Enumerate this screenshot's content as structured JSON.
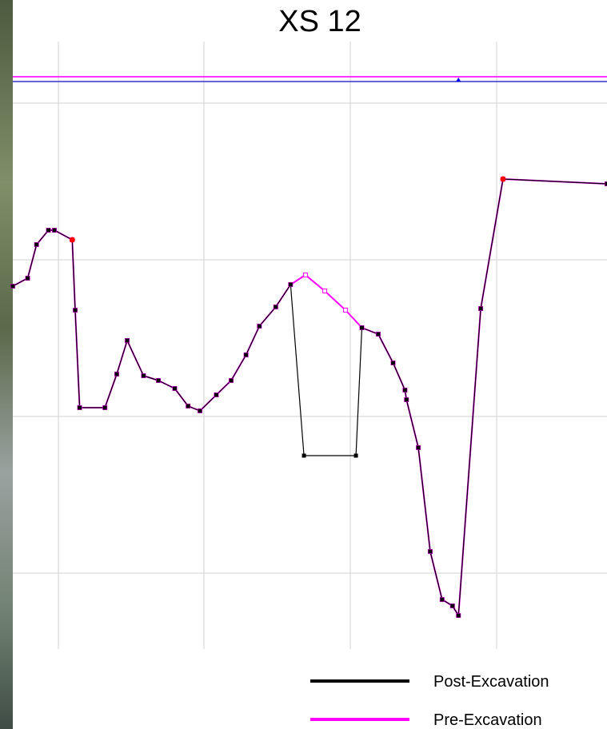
{
  "chart_data": {
    "type": "line",
    "title": "XS 12",
    "xlabel": "",
    "ylabel": "",
    "xlim": [
      0,
      40
    ],
    "ylim": [
      0,
      38
    ],
    "grid": true,
    "legend_position": "bottom-right",
    "water_surface": {
      "pink_level": 35.8,
      "blue_level": 35.5,
      "marker_x": 30
    },
    "series": [
      {
        "name": "Post-Excavation",
        "color": "#000000",
        "points": [
          [
            0,
            22.7
          ],
          [
            1.0,
            23.2
          ],
          [
            1.6,
            25.3
          ],
          [
            2.4,
            26.2
          ],
          [
            2.8,
            26.2
          ],
          [
            4.0,
            25.6
          ],
          [
            4.2,
            21.2
          ],
          [
            4.5,
            15.1
          ],
          [
            6.2,
            15.1
          ],
          [
            7.0,
            17.2
          ],
          [
            7.7,
            19.3
          ],
          [
            8.8,
            17.1
          ],
          [
            9.8,
            16.8
          ],
          [
            10.9,
            16.3
          ],
          [
            11.8,
            15.2
          ],
          [
            12.6,
            14.9
          ],
          [
            13.7,
            15.9
          ],
          [
            14.7,
            16.8
          ],
          [
            15.7,
            18.4
          ],
          [
            16.6,
            20.2
          ],
          [
            17.7,
            21.4
          ],
          [
            18.7,
            22.8
          ],
          [
            19.6,
            12.1
          ],
          [
            23.1,
            12.1
          ],
          [
            23.5,
            20.1
          ],
          [
            24.6,
            19.7
          ],
          [
            25.6,
            17.9
          ],
          [
            26.4,
            16.2
          ],
          [
            26.5,
            15.6
          ],
          [
            27.3,
            12.6
          ],
          [
            28.1,
            6.1
          ],
          [
            28.9,
            3.1
          ],
          [
            29.6,
            2.7
          ],
          [
            30.0,
            2.1
          ],
          [
            31.5,
            21.3
          ],
          [
            33.0,
            29.4
          ],
          [
            40,
            29.1
          ]
        ]
      },
      {
        "name": "Pre-Excavation",
        "color": "#ff00ff",
        "points": [
          [
            0,
            22.7
          ],
          [
            1.0,
            23.2
          ],
          [
            1.6,
            25.3
          ],
          [
            2.4,
            26.2
          ],
          [
            2.8,
            26.2
          ],
          [
            4.0,
            25.6
          ],
          [
            4.2,
            21.2
          ],
          [
            4.5,
            15.1
          ],
          [
            6.2,
            15.1
          ],
          [
            7.0,
            17.2
          ],
          [
            7.7,
            19.3
          ],
          [
            8.8,
            17.1
          ],
          [
            9.8,
            16.8
          ],
          [
            10.9,
            16.3
          ],
          [
            11.8,
            15.2
          ],
          [
            12.6,
            14.9
          ],
          [
            13.7,
            15.9
          ],
          [
            14.7,
            16.8
          ],
          [
            15.7,
            18.4
          ],
          [
            16.6,
            20.2
          ],
          [
            17.7,
            21.4
          ],
          [
            18.7,
            22.8
          ],
          [
            19.7,
            23.4
          ],
          [
            21.0,
            22.4
          ],
          [
            22.4,
            21.2
          ],
          [
            23.5,
            20.1
          ],
          [
            24.6,
            19.7
          ],
          [
            25.6,
            17.9
          ],
          [
            26.4,
            16.2
          ],
          [
            26.5,
            15.6
          ],
          [
            27.3,
            12.6
          ],
          [
            28.1,
            6.1
          ],
          [
            28.9,
            3.1
          ],
          [
            29.6,
            2.7
          ],
          [
            30.0,
            2.1
          ],
          [
            31.5,
            21.3
          ],
          [
            33.0,
            29.4
          ],
          [
            40,
            29.1
          ]
        ]
      }
    ],
    "highlight_points": [
      {
        "x": 4.0,
        "y": 25.6,
        "color": "#ff0000"
      },
      {
        "x": 33.0,
        "y": 29.4,
        "color": "#ff0000"
      }
    ]
  }
}
